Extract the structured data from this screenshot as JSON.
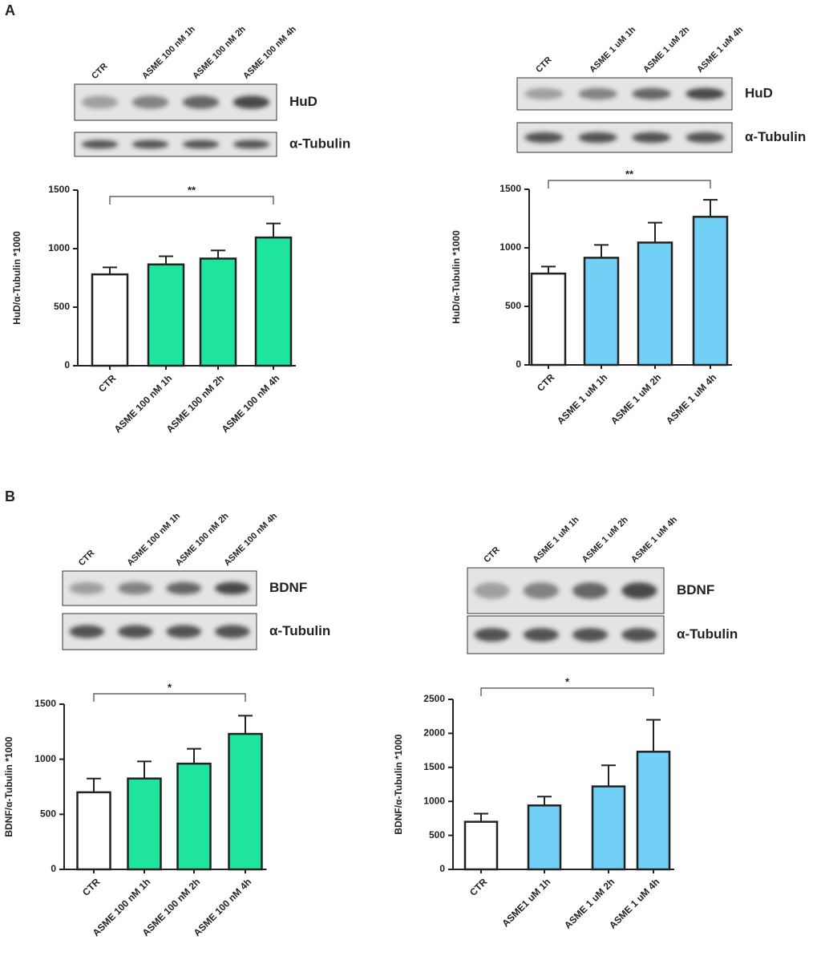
{
  "panel_labels": [
    "A",
    "B"
  ],
  "chart_data": [
    {
      "type": "bar",
      "ylabel": "HuD/α-Tubulin *1000",
      "categories": [
        "CTR",
        "ASME 100 nM 1h",
        "ASME 100 nM 2h",
        "ASME 100 nM 4h"
      ],
      "values": [
        780,
        865,
        915,
        1095
      ],
      "errors": [
        60,
        70,
        70,
        120
      ],
      "colors": [
        "#ffffff",
        "#1ee59b",
        "#1ee59b",
        "#1ee59b"
      ],
      "ylim": [
        0,
        1500
      ],
      "yticks": [
        0,
        500,
        1000,
        1500
      ],
      "significance": "**",
      "blot_lanes": [
        "CTR",
        "ASME 100 nM 1h",
        "ASME 100 nM 2h",
        "ASME 100 nM 4h"
      ],
      "blot_rows": [
        "HuD",
        "α-Tubulin"
      ]
    },
    {
      "type": "bar",
      "ylabel": "HuD/α-Tubulin *1000",
      "categories": [
        "CTR",
        "ASME 1 uM 1h",
        "ASME 1 uM 2h",
        "ASME 1 uM 4h"
      ],
      "values": [
        780,
        915,
        1045,
        1265
      ],
      "errors": [
        60,
        110,
        170,
        145
      ],
      "colors": [
        "#ffffff",
        "#72d0f7",
        "#72d0f7",
        "#72d0f7"
      ],
      "ylim": [
        0,
        1500
      ],
      "yticks": [
        0,
        500,
        1000,
        1500
      ],
      "significance": "**",
      "blot_lanes": [
        "CTR",
        "ASME 1 uM 1h",
        "ASME 1 uM 2h",
        "ASME 1 uM 4h"
      ],
      "blot_rows": [
        "HuD",
        "α-Tubulin"
      ]
    },
    {
      "type": "bar",
      "ylabel": "BDNF/α-Tubulin *1000",
      "categories": [
        "CTR",
        "ASME 100 nM 1h",
        "ASME 100 nM 2h",
        "ASME 100 nM 4h"
      ],
      "values": [
        700,
        825,
        960,
        1230
      ],
      "errors": [
        125,
        155,
        135,
        165
      ],
      "colors": [
        "#ffffff",
        "#1ee59b",
        "#1ee59b",
        "#1ee59b"
      ],
      "ylim": [
        0,
        1500
      ],
      "yticks": [
        0,
        500,
        1000,
        1500
      ],
      "significance": "*",
      "blot_lanes": [
        "CTR",
        "ASME 100 nM 1h",
        "ASME 100 nM 2h",
        "ASME 100 nM 4h"
      ],
      "blot_rows": [
        "BDNF",
        "α-Tubulin"
      ]
    },
    {
      "type": "bar",
      "ylabel": "BDNF/α-Tubulin *1000",
      "categories": [
        "CTR",
        "ASME1 uM 1h",
        "ASME 1 uM 2h",
        "ASME 1 uM 4h"
      ],
      "values": [
        700,
        940,
        1220,
        1730
      ],
      "errors": [
        120,
        130,
        310,
        470
      ],
      "colors": [
        "#ffffff",
        "#72d0f7",
        "#72d0f7",
        "#72d0f7"
      ],
      "ylim": [
        0,
        2500
      ],
      "yticks": [
        0,
        500,
        1000,
        1500,
        2000,
        2500
      ],
      "significance": "*",
      "blot_lanes": [
        "CTR",
        "ASME 1 uM 1h",
        "ASME 1 uM 2h",
        "ASME 1 uM 4h"
      ],
      "blot_rows": [
        "BDNF",
        "α-Tubulin"
      ]
    }
  ]
}
